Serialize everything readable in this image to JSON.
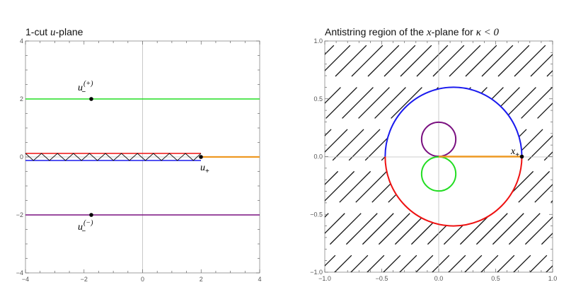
{
  "left_panel": {
    "title_pre": "1-cut ",
    "title_var": "u",
    "title_post": "-plane",
    "x_ticks": [
      "−4",
      "−2",
      "0",
      "2",
      "4"
    ],
    "y_ticks": [
      "4",
      "2",
      "0",
      "−2",
      "−4"
    ],
    "labels": {
      "u_minus_plus": {
        "base": "u",
        "sub": "−",
        "sup": "(+)"
      },
      "u_minus_minus": {
        "base": "u",
        "sub": "−",
        "sup": "(−)"
      },
      "u_plus": {
        "base": "u",
        "sub": "+"
      }
    },
    "colors": {
      "green": "#22dd22",
      "red": "#ee1111",
      "blue": "#1a1aee",
      "purple": "#7a1080",
      "orange": "#ee9922"
    }
  },
  "right_panel": {
    "title_pre": "Antistring region of the ",
    "title_var": "x",
    "title_mid": "-plane for ",
    "title_cond": "κ < 0",
    "x_ticks": [
      "−1.0",
      "−0.5",
      "0.0",
      "0.5",
      "1.0"
    ],
    "y_ticks": [
      "1.0",
      "0.5",
      "0.0",
      "−0.5",
      "−1.0"
    ],
    "labels": {
      "x_plus": {
        "base": "x",
        "sub": "+"
      }
    }
  },
  "chart_data": [
    {
      "type": "line",
      "title": "1-cut u-plane",
      "xlim": [
        -4,
        4
      ],
      "ylim": [
        -4,
        4
      ],
      "series": [
        {
          "color": "#22dd22",
          "x": [
            -4,
            4
          ],
          "y": [
            2,
            2
          ]
        },
        {
          "color": "#7a1080",
          "x": [
            -4,
            4
          ],
          "y": [
            -2,
            -2
          ]
        },
        {
          "color": "#ee1111",
          "x": [
            -4,
            2
          ],
          "y": [
            0.1,
            0.1
          ]
        },
        {
          "color": "#1a1aee",
          "x": [
            -4,
            2
          ],
          "y": [
            -0.1,
            -0.1
          ]
        },
        {
          "color": "#ee9922",
          "x": [
            2,
            4
          ],
          "y": [
            0,
            0
          ]
        }
      ],
      "points": [
        {
          "x": -1.8,
          "y": 2
        },
        {
          "x": -1.8,
          "y": -2
        },
        {
          "x": 2,
          "y": 0
        }
      ]
    },
    {
      "type": "line",
      "title": "Antistring region of the x-plane for κ < 0",
      "xlim": [
        -1.0,
        1.0
      ],
      "ylim": [
        -1.0,
        1.0
      ],
      "point": {
        "x": 0.73,
        "y": 0.0
      },
      "big_circle_center": [
        0.13,
        0.0
      ],
      "big_circle_radius": 0.6,
      "small_circle_radius": 0.15,
      "small_circle_centers": [
        [
          0.0,
          0.15
        ],
        [
          0.0,
          -0.15
        ]
      ],
      "hatch": "diagonal lines outside the big contour"
    }
  ]
}
